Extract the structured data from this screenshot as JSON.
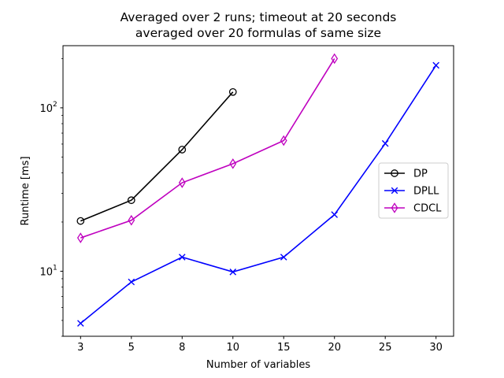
{
  "chart_data": {
    "type": "line",
    "title": "Averaged over 2 runs; timeout at 20 seconds\naveraged over 20 formulas of same size",
    "xlabel": "Number of variables",
    "ylabel": "Runtime [ms]",
    "categories": [
      "3",
      "5",
      "8",
      "10",
      "15",
      "20",
      "25",
      "30"
    ],
    "yscale": "log",
    "ylim": [
      4,
      240
    ],
    "yticks": [
      {
        "value": 10,
        "label": "10",
        "exp": "1"
      },
      {
        "value": 100,
        "label": "10",
        "exp": "2"
      }
    ],
    "grid": false,
    "legend_position": "center right",
    "series": [
      {
        "name": "DP",
        "color": "#000000",
        "marker": "circle",
        "values": [
          20.3,
          27.2,
          55.5,
          125,
          null,
          null,
          null,
          null
        ]
      },
      {
        "name": "DPLL",
        "color": "#0000ff",
        "marker": "x",
        "values": [
          4.8,
          8.6,
          12.2,
          9.9,
          12.2,
          22.2,
          60.5,
          182
        ]
      },
      {
        "name": "CDCL",
        "color": "#bf00bf",
        "marker": "diamond",
        "values": [
          16,
          20.5,
          34.8,
          45.5,
          63,
          200,
          null,
          null
        ]
      }
    ]
  }
}
